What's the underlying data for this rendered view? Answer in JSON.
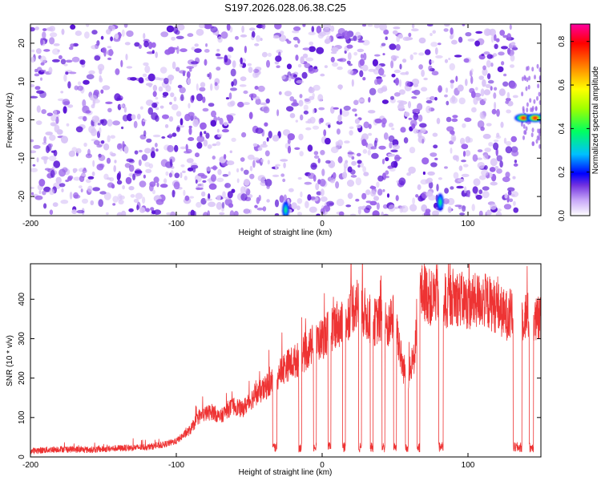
{
  "title": "S197.2026.028.06.38.C25",
  "colors": {
    "trace": "#ee3333",
    "speckle_dark": "#5a14d6",
    "speckle_mid": "#9a62ea",
    "speckle_light": "#d9c4f7",
    "axis": "#000000"
  },
  "chart_data": [
    {
      "type": "heatmap",
      "title": "S197.2026.028.06.38.C25",
      "xlabel": "Height of straight line (km)",
      "ylabel": "Frequency (Hz)",
      "xlim": [
        -200,
        150
      ],
      "ylim": [
        -25,
        25
      ],
      "xticks": [
        -200,
        -100,
        0,
        100
      ],
      "yticks": [
        -20,
        -10,
        0,
        10,
        20
      ],
      "xtick_labels": [
        "-200",
        "-100",
        "0",
        "100"
      ],
      "ytick_labels": [
        "-20",
        "-10",
        "0",
        "10",
        "20"
      ],
      "colorbar": {
        "label": "Normalized spectral amplitude",
        "range": [
          0,
          0.88
        ],
        "ticks": [
          0,
          0.2,
          0.4,
          0.6,
          0.8
        ],
        "tick_labels": [
          "0.0",
          "0.2",
          "0.4",
          "0.6",
          "0.8"
        ],
        "stops": [
          "#ffffff",
          "#7030e0",
          "#0000ff",
          "#00c0ff",
          "#00ff60",
          "#a0ff00",
          "#ffff00",
          "#ff8000",
          "#ff0000",
          "#ff00a0"
        ]
      },
      "features": {
        "white_gaps_km": [
          -34,
          83,
          135
        ],
        "data_end_km": 133,
        "hotspots": [
          {
            "x": -25,
            "y": -23.5,
            "amp": 0.3
          },
          {
            "x": 81,
            "y": -21.5,
            "amp": 0.25
          },
          {
            "x": 138,
            "y": 0.5,
            "amp": 0.85
          },
          {
            "x": 146,
            "y": 0.5,
            "amp": 0.7
          }
        ]
      }
    },
    {
      "type": "line",
      "xlabel": "Height of straight line (km)",
      "ylabel": "SNR (10 * v/v)",
      "xlim": [
        -200,
        150
      ],
      "ylim": [
        0,
        490
      ],
      "xticks": [
        -200,
        -100,
        0,
        100
      ],
      "yticks": [
        0,
        100,
        200,
        300,
        400
      ],
      "xtick_labels": [
        "-200",
        "-100",
        "0",
        "100"
      ],
      "ytick_labels": [
        "0",
        "100",
        "200",
        "300",
        "400"
      ],
      "series": [
        {
          "name": "SNR",
          "x": [
            -200,
            -180,
            -160,
            -140,
            -120,
            -110,
            -100,
            -95,
            -90,
            -85,
            -80,
            -75,
            -70,
            -65,
            -60,
            -55,
            -50,
            -45,
            -40,
            -35,
            -30,
            -25,
            -20,
            -15,
            -10,
            -5,
            0,
            5,
            10,
            15,
            20,
            25,
            30,
            35,
            40,
            45,
            50,
            55,
            60,
            63,
            66,
            70,
            75,
            80,
            83,
            86,
            90,
            95,
            100,
            110,
            120,
            125,
            130,
            135,
            140,
            145,
            150
          ],
          "values": [
            15,
            20,
            18,
            22,
            25,
            30,
            40,
            55,
            70,
            100,
            110,
            115,
            100,
            120,
            130,
            120,
            140,
            160,
            170,
            190,
            210,
            230,
            240,
            250,
            270,
            290,
            300,
            320,
            340,
            330,
            380,
            390,
            360,
            340,
            350,
            330,
            360,
            230,
            200,
            250,
            410,
            420,
            400,
            420,
            400,
            390,
            410,
            400,
            390,
            400,
            380,
            360,
            360,
            350,
            360,
            340,
            350
          ]
        }
      ],
      "dropouts": [
        {
          "from": -34,
          "to": -31
        },
        {
          "from": -16,
          "to": -14
        },
        {
          "from": -6,
          "to": -4
        },
        {
          "from": 4,
          "to": 6
        },
        {
          "from": 14,
          "to": 16
        },
        {
          "from": 25,
          "to": 27
        },
        {
          "from": 33,
          "to": 35
        },
        {
          "from": 41,
          "to": 43
        },
        {
          "from": 49,
          "to": 51
        },
        {
          "from": 57,
          "to": 59
        },
        {
          "from": 65,
          "to": 67
        },
        {
          "from": 80,
          "to": 83
        },
        {
          "from": 131,
          "to": 137
        },
        {
          "from": 142,
          "to": 145
        }
      ]
    }
  ]
}
